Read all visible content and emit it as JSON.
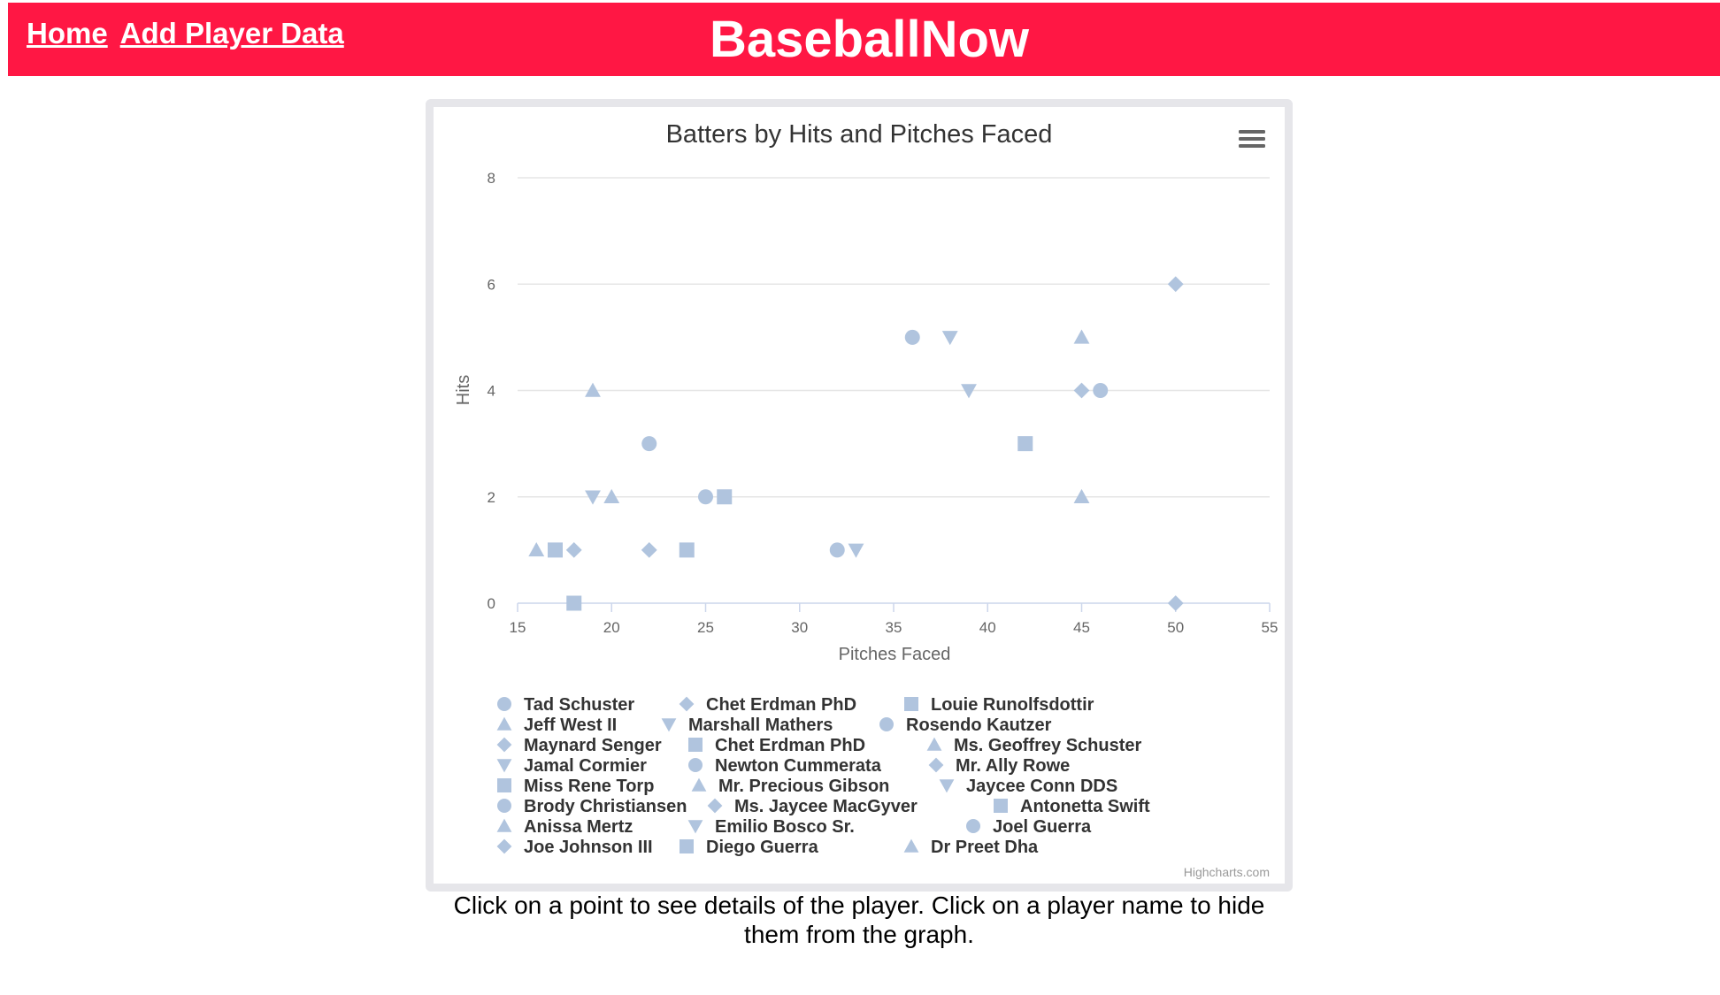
{
  "nav": {
    "home": "Home",
    "add_player": "Add Player Data"
  },
  "brand": "BaseballNow",
  "caption": "Click on a point to see details of the player. Click on a player name to hide them from the graph.",
  "colors": {
    "topbar": "#ff1744",
    "marker": "#b0c4de",
    "frame": "#e6e6ea"
  },
  "chart_data": {
    "type": "scatter",
    "title": "Batters by Hits and Pitches Faced",
    "xlabel": "Pitches Faced",
    "ylabel": "Hits",
    "xlim": [
      15,
      55
    ],
    "ylim": [
      0,
      8
    ],
    "xticks": [
      15,
      20,
      25,
      30,
      35,
      40,
      45,
      50,
      55
    ],
    "yticks": [
      0,
      2,
      4,
      6,
      8
    ],
    "grid": true,
    "legend_position": "bottom",
    "credits": "Highcharts.com",
    "menu_icon": "hamburger-menu-icon",
    "series": [
      {
        "name": "Tad Schuster",
        "marker": "circle",
        "points": [
          [
            36,
            5
          ]
        ]
      },
      {
        "name": "Chet Erdman PhD",
        "marker": "diamond",
        "points": [
          [
            45,
            4
          ]
        ]
      },
      {
        "name": "Louie Runolfsdottir",
        "marker": "square",
        "points": [
          [
            42,
            3
          ]
        ]
      },
      {
        "name": "Jeff West II",
        "marker": "triangle",
        "points": [
          [
            45,
            5
          ]
        ]
      },
      {
        "name": "Marshall Mathers",
        "marker": "triangle-down",
        "points": [
          [
            38,
            5
          ]
        ]
      },
      {
        "name": "Rosendo Kautzer",
        "marker": "circle",
        "points": [
          [
            46,
            4
          ]
        ]
      },
      {
        "name": "Maynard Senger",
        "marker": "diamond",
        "points": [
          [
            50,
            6
          ]
        ]
      },
      {
        "name": "Chet Erdman PhD",
        "marker": "square",
        "points": [
          [
            26,
            2
          ]
        ]
      },
      {
        "name": "Ms. Geoffrey Schuster",
        "marker": "triangle",
        "points": [
          [
            19,
            4
          ]
        ]
      },
      {
        "name": "Jamal Cormier",
        "marker": "triangle-down",
        "points": [
          [
            39,
            4
          ]
        ]
      },
      {
        "name": "Newton Cummerata",
        "marker": "circle",
        "points": [
          [
            22,
            3
          ]
        ]
      },
      {
        "name": "Mr. Ally Rowe",
        "marker": "diamond",
        "points": [
          [
            22,
            1
          ]
        ]
      },
      {
        "name": "Miss Rene Torp",
        "marker": "square",
        "points": [
          [
            24,
            1
          ]
        ]
      },
      {
        "name": "Mr. Precious Gibson",
        "marker": "triangle",
        "points": [
          [
            20,
            2
          ]
        ]
      },
      {
        "name": "Jaycee Conn DDS",
        "marker": "triangle-down",
        "points": [
          [
            19,
            2
          ]
        ]
      },
      {
        "name": "Brody Christiansen",
        "marker": "circle",
        "points": [
          [
            25,
            2
          ]
        ]
      },
      {
        "name": "Ms. Jaycee MacGyver",
        "marker": "diamond",
        "points": [
          [
            18,
            1
          ]
        ]
      },
      {
        "name": "Antonetta Swift",
        "marker": "square",
        "points": [
          [
            17,
            1
          ]
        ]
      },
      {
        "name": "Anissa Mertz",
        "marker": "triangle",
        "points": [
          [
            45,
            2
          ]
        ]
      },
      {
        "name": "Emilio Bosco Sr.",
        "marker": "triangle-down",
        "points": [
          [
            33,
            1
          ]
        ]
      },
      {
        "name": "Joel Guerra",
        "marker": "circle",
        "points": [
          [
            32,
            1
          ]
        ]
      },
      {
        "name": "Joe Johnson III",
        "marker": "diamond",
        "points": [
          [
            50,
            0
          ]
        ]
      },
      {
        "name": "Diego Guerra",
        "marker": "square",
        "points": [
          [
            18,
            0
          ]
        ]
      },
      {
        "name": "Dr Preet Dha",
        "marker": "triangle",
        "points": [
          [
            16,
            1
          ]
        ]
      }
    ]
  }
}
